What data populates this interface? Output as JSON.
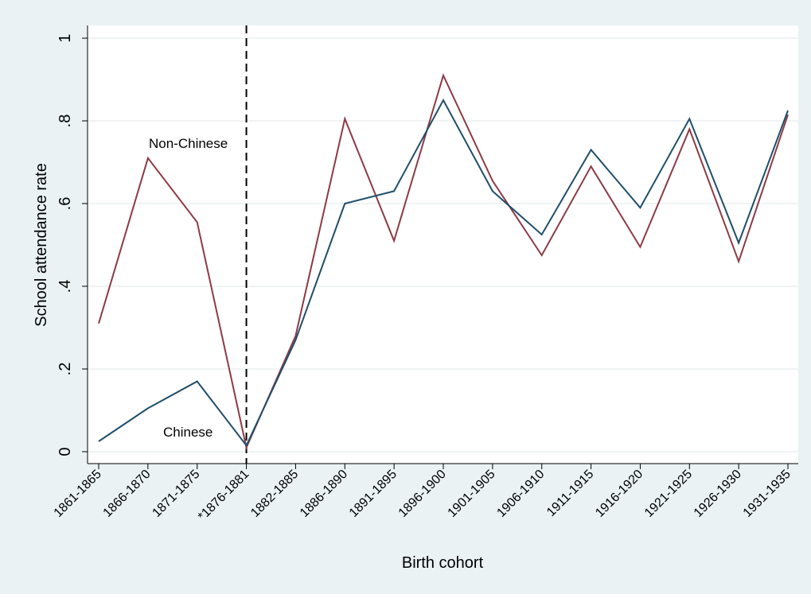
{
  "chart_data": {
    "type": "line",
    "title": "",
    "xlabel": "Birth cohort",
    "ylabel": "School attendance rate",
    "categories": [
      "1861-1865",
      "1866-1870",
      "1871-1875",
      "*1876-1881",
      "1882-1885",
      "1886-1890",
      "1891-1895",
      "1896-1900",
      "1901-1905",
      "1906-1910",
      "1911-1915",
      "1916-1920",
      "1921-1925",
      "1926-1930",
      "1931-1935"
    ],
    "yticks": [
      {
        "value": 0,
        "label": "0"
      },
      {
        "value": 0.2,
        "label": ".2"
      },
      {
        "value": 0.4,
        "label": ".4"
      },
      {
        "value": 0.6,
        "label": ".6"
      },
      {
        "value": 0.8,
        "label": ".8"
      },
      {
        "value": 1,
        "label": "1"
      }
    ],
    "ylim": [
      0,
      1
    ],
    "grid": true,
    "series": [
      {
        "name": "Non-Chinese",
        "color": "#8c3b45",
        "values": [
          0.31,
          0.71,
          0.555,
          0.01,
          0.28,
          0.805,
          0.51,
          0.91,
          0.655,
          0.475,
          0.69,
          0.495,
          0.78,
          0.46,
          0.815
        ]
      },
      {
        "name": "Chinese",
        "color": "#1f4e6b",
        "values": [
          0.025,
          0.105,
          0.17,
          0.015,
          0.27,
          0.6,
          0.63,
          0.85,
          0.63,
          0.525,
          0.73,
          0.59,
          0.805,
          0.505,
          0.825
        ]
      }
    ],
    "annotations": [
      {
        "text": "Non-Chinese",
        "series": 0,
        "category": "1866-1870"
      },
      {
        "text": "Chinese",
        "series": 1,
        "category": "1876-1881"
      }
    ],
    "reference_line": {
      "category": "*1876-1881",
      "style": "dashed"
    }
  }
}
